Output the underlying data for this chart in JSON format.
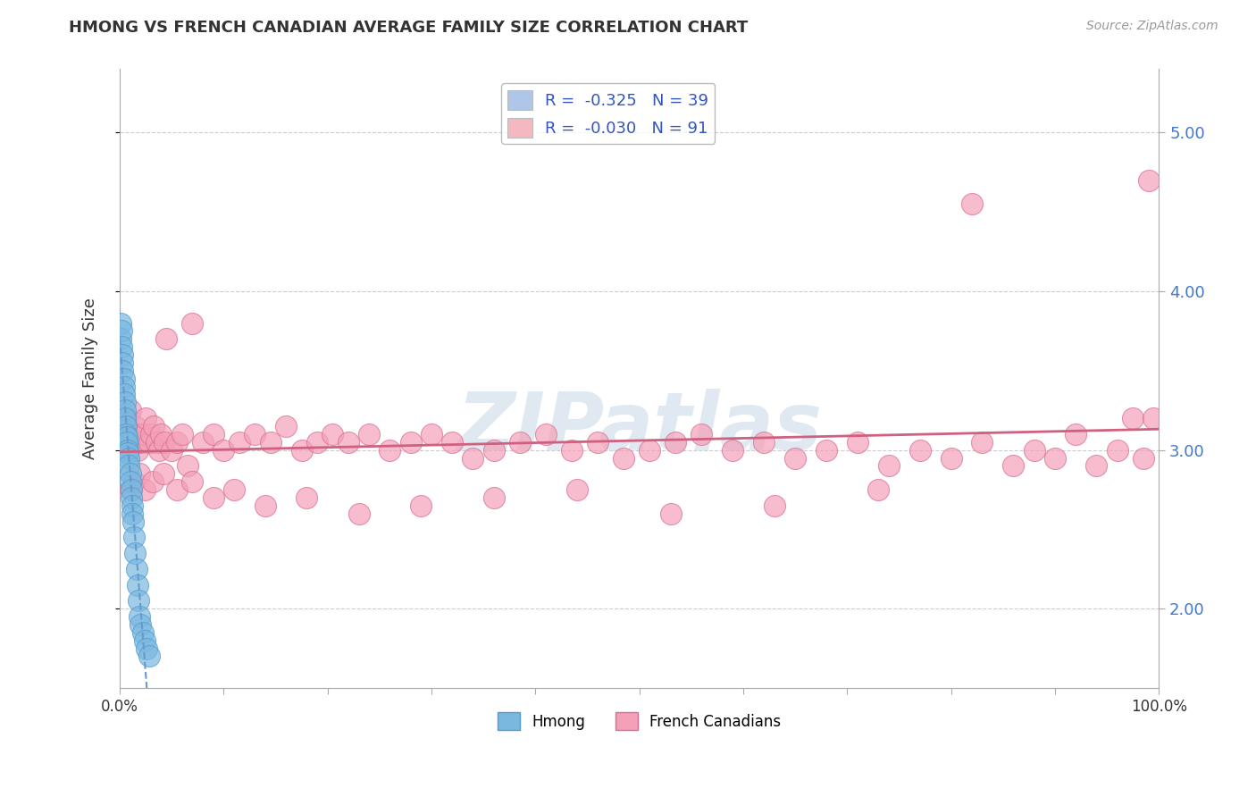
{
  "title": "HMONG VS FRENCH CANADIAN AVERAGE FAMILY SIZE CORRELATION CHART",
  "source_text": "Source: ZipAtlas.com",
  "ylabel": "Average Family Size",
  "xlim": [
    0.0,
    1.0
  ],
  "ylim": [
    1.5,
    5.4
  ],
  "yticks": [
    2.0,
    3.0,
    4.0,
    5.0
  ],
  "ytick_labels": [
    "2.00",
    "3.00",
    "4.00",
    "5.00"
  ],
  "xticks": [
    0.0,
    0.1,
    0.2,
    0.3,
    0.4,
    0.5,
    0.6,
    0.7,
    0.8,
    0.9,
    1.0
  ],
  "xtick_labels": [
    "0.0%",
    "",
    "",
    "",
    "",
    "",
    "",
    "",
    "",
    "",
    "100.0%"
  ],
  "legend_entries": [
    {
      "label": "R =  -0.325   N = 39",
      "color": "#aec6e8"
    },
    {
      "label": "R =  -0.030   N = 91",
      "color": "#f4b8c1"
    }
  ],
  "legend_labels_bottom": [
    "Hmong",
    "French Canadians"
  ],
  "watermark": "ZIPatlas",
  "watermark_color": "#c8d8e8",
  "hmong_color": "#7ab8e0",
  "hmong_edge_color": "#5599cc",
  "french_color": "#f4a0b8",
  "french_edge_color": "#d87090",
  "hmong_trend_color": "#6699cc",
  "french_trend_color": "#d06080",
  "hmong_scatter_x": [
    0.001,
    0.001,
    0.002,
    0.002,
    0.003,
    0.003,
    0.003,
    0.004,
    0.004,
    0.004,
    0.005,
    0.005,
    0.005,
    0.006,
    0.006,
    0.007,
    0.007,
    0.008,
    0.008,
    0.009,
    0.009,
    0.01,
    0.01,
    0.011,
    0.011,
    0.012,
    0.012,
    0.013,
    0.014,
    0.015,
    0.016,
    0.017,
    0.018,
    0.019,
    0.02,
    0.022,
    0.024,
    0.026,
    0.028
  ],
  "hmong_scatter_y": [
    3.8,
    3.7,
    3.75,
    3.65,
    3.6,
    3.55,
    3.5,
    3.45,
    3.4,
    3.35,
    3.3,
    3.25,
    3.2,
    3.15,
    3.1,
    3.08,
    3.05,
    3.0,
    2.98,
    2.95,
    2.9,
    2.85,
    2.8,
    2.75,
    2.7,
    2.65,
    2.6,
    2.55,
    2.45,
    2.35,
    2.25,
    2.15,
    2.05,
    1.95,
    1.9,
    1.85,
    1.8,
    1.75,
    1.7
  ],
  "french_scatter_x": [
    0.003,
    0.005,
    0.007,
    0.009,
    0.01,
    0.012,
    0.013,
    0.015,
    0.017,
    0.018,
    0.02,
    0.022,
    0.025,
    0.028,
    0.03,
    0.033,
    0.035,
    0.038,
    0.04,
    0.043,
    0.045,
    0.05,
    0.055,
    0.06,
    0.065,
    0.07,
    0.08,
    0.09,
    0.1,
    0.115,
    0.13,
    0.145,
    0.16,
    0.175,
    0.19,
    0.205,
    0.22,
    0.24,
    0.26,
    0.28,
    0.3,
    0.32,
    0.34,
    0.36,
    0.385,
    0.41,
    0.435,
    0.46,
    0.485,
    0.51,
    0.535,
    0.56,
    0.59,
    0.62,
    0.65,
    0.68,
    0.71,
    0.74,
    0.77,
    0.8,
    0.83,
    0.86,
    0.88,
    0.9,
    0.92,
    0.94,
    0.96,
    0.975,
    0.985,
    0.99,
    0.01,
    0.014,
    0.019,
    0.024,
    0.032,
    0.042,
    0.055,
    0.07,
    0.09,
    0.11,
    0.14,
    0.18,
    0.23,
    0.29,
    0.36,
    0.44,
    0.53,
    0.63,
    0.73,
    0.82,
    0.995
  ],
  "french_scatter_y": [
    3.15,
    3.1,
    3.2,
    3.05,
    3.25,
    3.1,
    3.05,
    3.15,
    3.0,
    3.1,
    3.05,
    3.1,
    3.2,
    3.05,
    3.1,
    3.15,
    3.05,
    3.0,
    3.1,
    3.05,
    3.7,
    3.0,
    3.05,
    3.1,
    2.9,
    3.8,
    3.05,
    3.1,
    3.0,
    3.05,
    3.1,
    3.05,
    3.15,
    3.0,
    3.05,
    3.1,
    3.05,
    3.1,
    3.0,
    3.05,
    3.1,
    3.05,
    2.95,
    3.0,
    3.05,
    3.1,
    3.0,
    3.05,
    2.95,
    3.0,
    3.05,
    3.1,
    3.0,
    3.05,
    2.95,
    3.0,
    3.05,
    2.9,
    3.0,
    2.95,
    3.05,
    2.9,
    3.0,
    2.95,
    3.1,
    2.9,
    3.0,
    3.2,
    2.95,
    4.7,
    2.75,
    2.8,
    2.85,
    2.75,
    2.8,
    2.85,
    2.75,
    2.8,
    2.7,
    2.75,
    2.65,
    2.7,
    2.6,
    2.65,
    2.7,
    2.75,
    2.6,
    2.65,
    2.75,
    4.55,
    3.2
  ]
}
